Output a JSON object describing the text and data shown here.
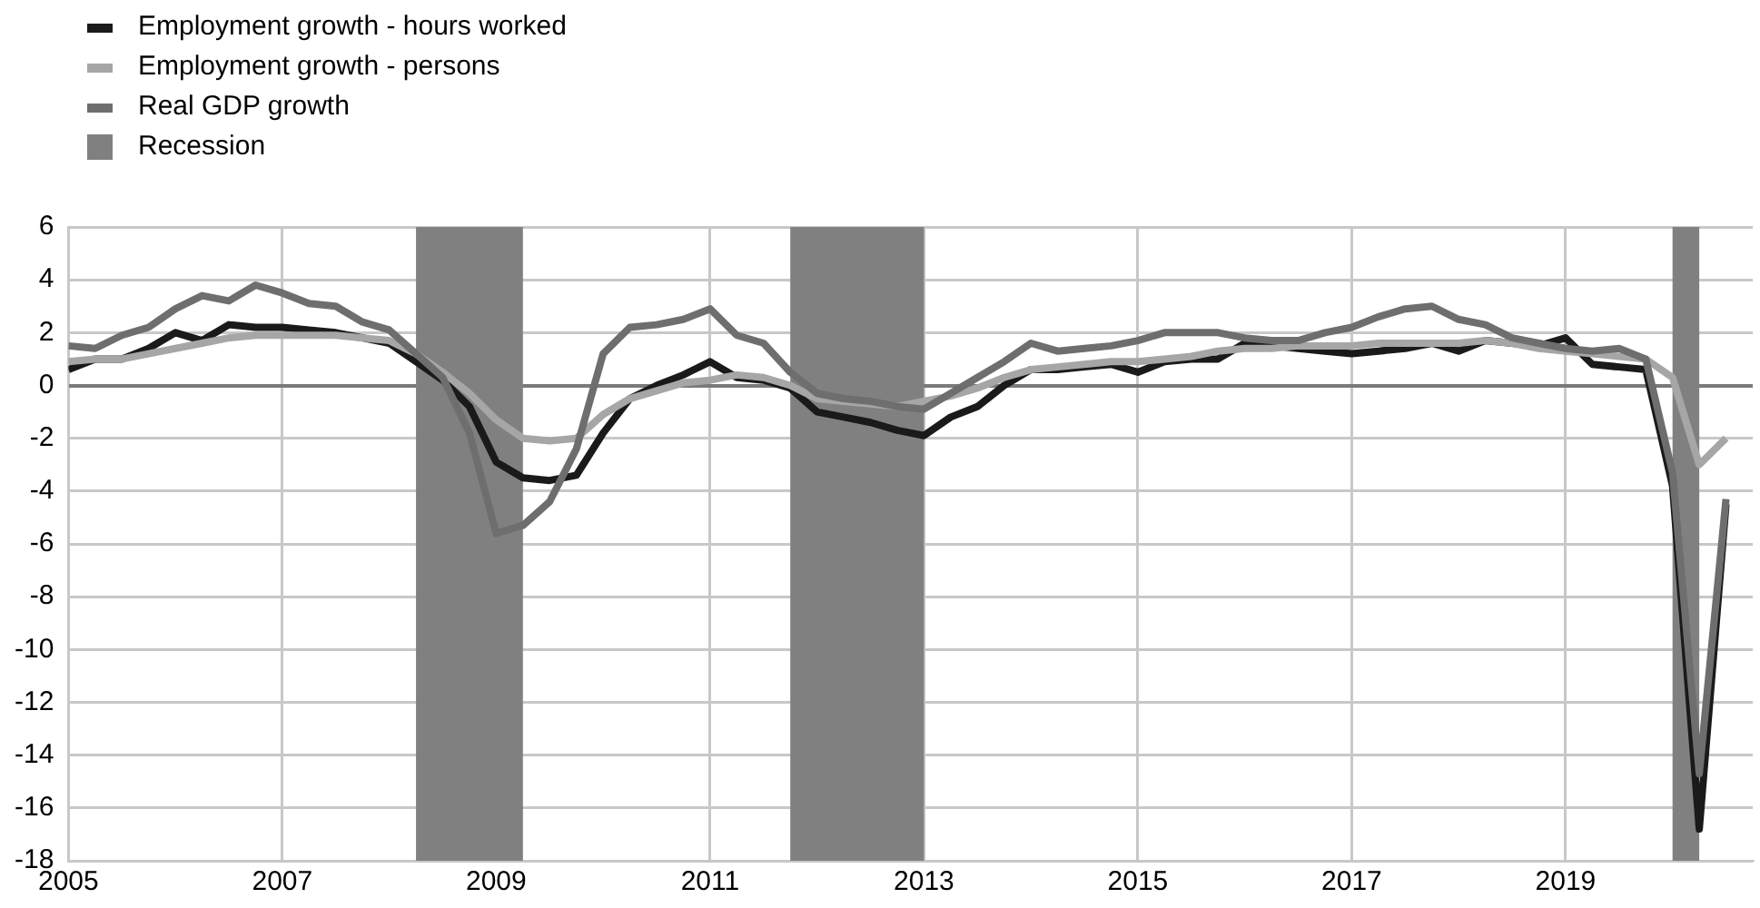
{
  "chart_data": {
    "type": "line",
    "x": [
      2005,
      2005.25,
      2005.5,
      2005.75,
      2006,
      2006.25,
      2006.5,
      2006.75,
      2007,
      2007.25,
      2007.5,
      2007.75,
      2008,
      2008.25,
      2008.5,
      2008.75,
      2009,
      2009.25,
      2009.5,
      2009.75,
      2010,
      2010.25,
      2010.5,
      2010.75,
      2011,
      2011.25,
      2011.5,
      2011.75,
      2012,
      2012.25,
      2012.5,
      2012.75,
      2013,
      2013.25,
      2013.5,
      2013.75,
      2014,
      2014.25,
      2014.5,
      2014.75,
      2015,
      2015.25,
      2015.5,
      2015.75,
      2016,
      2016.25,
      2016.5,
      2016.75,
      2017,
      2017.25,
      2017.5,
      2017.75,
      2018,
      2018.25,
      2018.5,
      2018.75,
      2019,
      2019.25,
      2019.5,
      2019.75,
      2020,
      2020.25,
      2020.5
    ],
    "series": [
      {
        "name": "Employment growth - hours worked",
        "color": "#1a1a1a",
        "values": [
          0.6,
          1.0,
          1.0,
          1.4,
          2.0,
          1.7,
          2.3,
          2.2,
          2.2,
          2.1,
          2.0,
          1.8,
          1.6,
          0.9,
          0.2,
          -0.8,
          -2.9,
          -3.5,
          -3.6,
          -3.4,
          -1.8,
          -0.5,
          0.0,
          0.4,
          0.9,
          0.3,
          0.2,
          -0.1,
          -1.0,
          -1.2,
          -1.4,
          -1.7,
          -1.9,
          -1.2,
          -0.8,
          0.0,
          0.6,
          0.6,
          0.7,
          0.8,
          0.5,
          0.9,
          1.0,
          1.0,
          1.6,
          1.5,
          1.4,
          1.3,
          1.2,
          1.3,
          1.4,
          1.6,
          1.3,
          1.7,
          1.6,
          1.5,
          1.8,
          0.8,
          0.7,
          0.6,
          -3.8,
          -16.8,
          -4.5
        ]
      },
      {
        "name": "Employment growth - persons",
        "color": "#a6a6a6",
        "values": [
          0.9,
          1.0,
          1.0,
          1.2,
          1.4,
          1.6,
          1.8,
          1.9,
          1.9,
          1.9,
          1.9,
          1.8,
          1.7,
          1.2,
          0.5,
          -0.3,
          -1.3,
          -2.0,
          -2.1,
          -2.0,
          -1.1,
          -0.5,
          -0.2,
          0.1,
          0.2,
          0.4,
          0.3,
          0.0,
          -0.5,
          -0.6,
          -0.7,
          -0.8,
          -0.6,
          -0.4,
          -0.1,
          0.3,
          0.6,
          0.7,
          0.8,
          0.9,
          0.9,
          1.0,
          1.1,
          1.3,
          1.4,
          1.4,
          1.5,
          1.5,
          1.5,
          1.6,
          1.6,
          1.6,
          1.6,
          1.7,
          1.6,
          1.4,
          1.3,
          1.2,
          1.1,
          1.0,
          0.3,
          -3.0,
          -2.0
        ]
      },
      {
        "name": "Real GDP growth",
        "color": "#6e6e6e",
        "values": [
          1.5,
          1.4,
          1.9,
          2.2,
          2.9,
          3.4,
          3.2,
          3.8,
          3.5,
          3.1,
          3.0,
          2.4,
          2.1,
          1.2,
          0.3,
          -1.8,
          -5.6,
          -5.3,
          -4.4,
          -2.4,
          1.2,
          2.2,
          2.3,
          2.5,
          2.9,
          1.9,
          1.6,
          0.5,
          -0.3,
          -0.5,
          -0.6,
          -0.8,
          -0.9,
          -0.3,
          0.3,
          0.9,
          1.6,
          1.3,
          1.4,
          1.5,
          1.7,
          2.0,
          2.0,
          2.0,
          1.8,
          1.7,
          1.7,
          2.0,
          2.2,
          2.6,
          2.9,
          3.0,
          2.5,
          2.3,
          1.8,
          1.6,
          1.4,
          1.3,
          1.4,
          1.0,
          -3.3,
          -14.7,
          -4.3
        ]
      }
    ],
    "bands": [
      {
        "axis": "x",
        "from": 2008.25,
        "to": 2009.25,
        "label": "Recession",
        "color": "#808080"
      },
      {
        "axis": "x",
        "from": 2011.75,
        "to": 2013.0,
        "color": "#808080"
      },
      {
        "axis": "x",
        "from": 2020.0,
        "to": 2020.25,
        "color": "#808080"
      }
    ],
    "xlim": [
      2005,
      2020.75
    ],
    "xticks": [
      2005,
      2007,
      2009,
      2011,
      2013,
      2015,
      2017,
      2019
    ],
    "ylim": [
      -18,
      6
    ],
    "yticks": [
      -18,
      -16,
      -14,
      -12,
      -10,
      -8,
      -6,
      -4,
      -2,
      0,
      2,
      4,
      6
    ],
    "grid": true,
    "legend": "top left",
    "marker": "none",
    "line_style": "solid"
  }
}
